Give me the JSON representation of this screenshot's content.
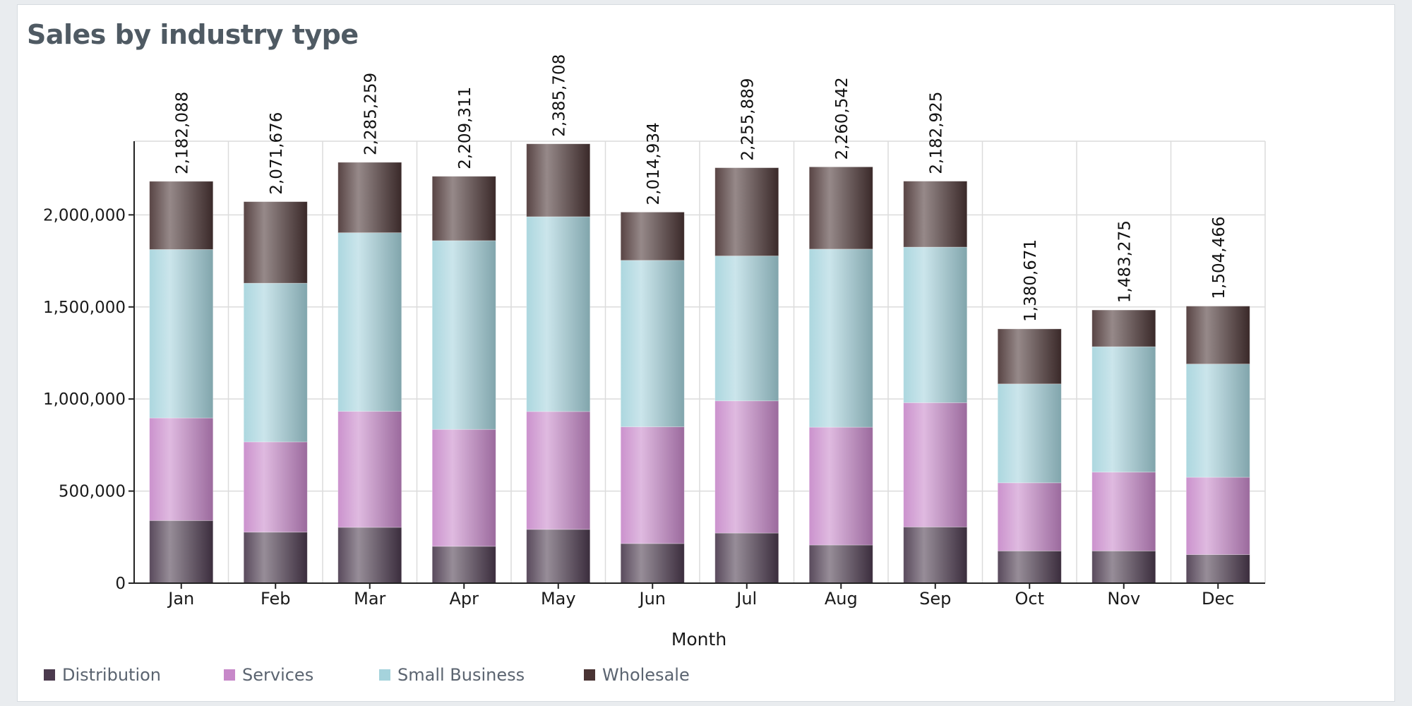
{
  "chart_data": {
    "type": "bar",
    "stacked": true,
    "title": "Sales by industry type",
    "xlabel": "Month",
    "ylabel": "",
    "ylim": [
      0,
      2400000
    ],
    "yticks": [
      0,
      500000,
      1000000,
      1500000,
      2000000
    ],
    "ytick_labels": [
      "0",
      "500,000",
      "1,000,000",
      "1,500,000",
      "2,000,000"
    ],
    "categories": [
      "Jan",
      "Feb",
      "Mar",
      "Apr",
      "May",
      "Jun",
      "Jul",
      "Aug",
      "Sep",
      "Oct",
      "Nov",
      "Dec"
    ],
    "series": [
      {
        "name": "Distribution",
        "color": "#4b3a4e",
        "values": [
          340000,
          277000,
          303000,
          200000,
          292000,
          215000,
          272000,
          207000,
          305000,
          175000,
          175000,
          155000
        ]
      },
      {
        "name": "Services",
        "color": "#c788c9",
        "values": [
          557000,
          490000,
          630000,
          635000,
          640000,
          634000,
          718000,
          640000,
          675000,
          370000,
          428000,
          420000
        ]
      },
      {
        "name": "Small Business",
        "color": "#a5d3dc",
        "values": [
          915000,
          862000,
          970000,
          1025000,
          1058000,
          904000,
          787000,
          967000,
          845000,
          537000,
          681000,
          615000
        ]
      },
      {
        "name": "Wholesale",
        "color": "#4a3434",
        "values": [
          370088,
          442676,
          382259,
          349311,
          395708,
          261934,
          478889,
          446542,
          357925,
          298671,
          199275,
          314466
        ]
      }
    ],
    "totals": [
      2182088,
      2071676,
      2285259,
      2209311,
      2385708,
      2014934,
      2255889,
      2260542,
      2182925,
      1380671,
      1483275,
      1504466
    ],
    "total_labels": [
      "2,182,088",
      "2,071,676",
      "2,285,259",
      "2,209,311",
      "2,385,708",
      "2,014,934",
      "2,255,889",
      "2,260,542",
      "2,182,925",
      "1,380,671",
      "1,483,275",
      "1,504,466"
    ],
    "grid": true,
    "legend_position": "bottom-left"
  }
}
